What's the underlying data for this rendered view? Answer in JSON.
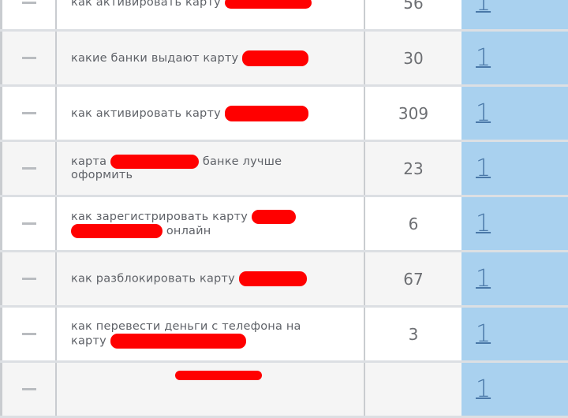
{
  "rows": [
    {
      "before": "как активировать карту",
      "after": "",
      "count": "56",
      "position": "1"
    },
    {
      "before": "какие банки выдают карту",
      "after": "",
      "count": "30",
      "position": "1"
    },
    {
      "before": "как активировать карту",
      "after": "",
      "count": "309",
      "position": "1"
    },
    {
      "before": "карта",
      "after": "банке лучше оформить",
      "count": "23",
      "position": "1"
    },
    {
      "before": "как зарегистрировать карту",
      "after": "онлайн",
      "count": "6",
      "position": "1"
    },
    {
      "before": "как разблокировать карту",
      "after": "",
      "count": "67",
      "position": "1"
    },
    {
      "before": "как перевести деньги с телефона на карту",
      "after": "",
      "count": "3",
      "position": "1"
    },
    {
      "before": "",
      "after": "",
      "count": "",
      "position": "1"
    }
  ],
  "colors": {
    "redaction": "#ff0000",
    "position_column": "#a9d1ef",
    "link": "#4a78a8"
  }
}
